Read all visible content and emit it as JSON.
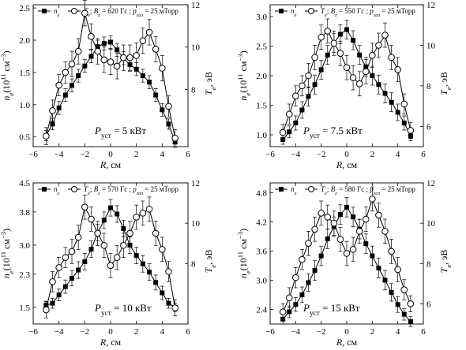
{
  "legend": {
    "ne": "n",
    "ne_sub": "e",
    "te": "T",
    "te_sub": "e",
    "sep": "; ",
    "bz": "B",
    "bz_sub": "z",
    "gs": " Гс ; ",
    "p": "p",
    "p_sub": "газ",
    "p_val": " = 25 мТорр"
  },
  "axes": {
    "xlabel_main": "R",
    "xlabel_unit": ", см",
    "ylabel_left_main": "n",
    "ylabel_left_sub": "e",
    "ylabel_left_rest": "(10",
    "ylabel_left_exp": "11",
    "ylabel_left_unit": " см",
    "ylabel_left_unit_exp": "−3",
    "ylabel_left_close": ")",
    "ylabel_right_main": "T",
    "ylabel_right_sub": "e",
    "ylabel_right_rest": ", эВ",
    "power_main": "P",
    "power_sub": "уст"
  },
  "chart_data": [
    {
      "type": "line",
      "panel": "top-left",
      "bz": "620",
      "power": " = 5 кВт",
      "x": [
        -5,
        -4.5,
        -4,
        -3.5,
        -3,
        -2.5,
        -2,
        -1.5,
        -1,
        -0.5,
        0,
        0.5,
        1,
        1.5,
        2,
        2.5,
        3,
        3.5,
        4,
        4.5,
        5
      ],
      "xlim": [
        -6,
        6
      ],
      "xticks": [
        -6,
        -4,
        -2,
        0,
        2,
        4,
        6
      ],
      "ylim_left": [
        0.35,
        2.55
      ],
      "yticks_left": [
        "0.5",
        "1.0",
        "1.5",
        "2.0",
        "2.5"
      ],
      "ylim_right": [
        5.3,
        12
      ],
      "yticks_right": [
        "8",
        "10",
        "12"
      ],
      "series": [
        {
          "name": "ne",
          "marker": "square",
          "axis": "left",
          "values": [
            0.52,
            0.7,
            0.95,
            1.15,
            1.3,
            1.45,
            1.6,
            1.75,
            1.9,
            1.95,
            1.97,
            1.85,
            1.72,
            1.62,
            1.55,
            1.45,
            1.35,
            1.15,
            0.92,
            0.7,
            0.42
          ],
          "err": [
            0.08,
            0.09,
            0.1,
            0.1,
            0.1,
            0.1,
            0.1,
            0.1,
            0.1,
            0.1,
            0.1,
            0.1,
            0.1,
            0.1,
            0.1,
            0.1,
            0.1,
            0.1,
            0.1,
            0.08,
            0.08
          ]
        },
        {
          "name": "Te",
          "marker": "circle",
          "axis": "right",
          "values": [
            5.8,
            7.0,
            8.2,
            8.8,
            9.2,
            9.8,
            11.6,
            10.5,
            9.8,
            9.4,
            9.3,
            9.1,
            9.5,
            9.5,
            9.6,
            10.3,
            10.7,
            9.9,
            9.0,
            7.2,
            5.7
          ],
          "err": [
            0.4,
            0.5,
            0.5,
            0.5,
            0.6,
            0.6,
            0.6,
            0.6,
            0.6,
            0.6,
            0.6,
            0.6,
            0.6,
            0.6,
            0.6,
            0.6,
            0.6,
            0.6,
            0.6,
            0.5,
            0.4
          ]
        }
      ]
    },
    {
      "type": "line",
      "panel": "top-right",
      "bz": "550",
      "power": " = 7.5 кВт",
      "x": [
        -5,
        -4.5,
        -4,
        -3.5,
        -3,
        -2.5,
        -2,
        -1.5,
        -1,
        -0.5,
        0,
        0.5,
        1,
        1.5,
        2,
        2.5,
        3,
        3.5,
        4,
        4.5,
        5
      ],
      "xlim": [
        -6,
        6
      ],
      "xticks": [
        -6,
        -4,
        -2,
        0,
        2,
        4,
        6
      ],
      "ylim_left": [
        0.8,
        3.2
      ],
      "yticks_left": [
        "1.0",
        "1.5",
        "2.0",
        "2.5",
        "3.0"
      ],
      "ylim_right": [
        5.0,
        12
      ],
      "yticks_right": [
        "6",
        "8",
        "10",
        "12"
      ],
      "series": [
        {
          "name": "ne",
          "marker": "square",
          "axis": "left",
          "values": [
            0.92,
            1.05,
            1.2,
            1.42,
            1.65,
            1.85,
            2.1,
            2.35,
            2.55,
            2.7,
            2.78,
            2.6,
            2.35,
            2.15,
            2.0,
            1.85,
            1.7,
            1.55,
            1.38,
            1.2,
            0.98
          ],
          "err": [
            0.08,
            0.1,
            0.12,
            0.14,
            0.16,
            0.16,
            0.16,
            0.16,
            0.16,
            0.16,
            0.16,
            0.16,
            0.16,
            0.16,
            0.16,
            0.16,
            0.16,
            0.16,
            0.14,
            0.12,
            0.08
          ]
        },
        {
          "name": "Te",
          "marker": "circle",
          "axis": "right",
          "values": [
            5.7,
            6.6,
            7.5,
            8.0,
            8.5,
            9.4,
            10.4,
            10.7,
            10.1,
            9.6,
            8.9,
            8.4,
            8.1,
            8.7,
            9.5,
            10.0,
            10.5,
            9.4,
            8.8,
            7.1,
            5.8
          ],
          "err": [
            0.4,
            0.5,
            0.5,
            0.5,
            0.6,
            0.6,
            0.6,
            0.6,
            0.6,
            0.6,
            0.6,
            0.6,
            0.6,
            0.6,
            0.6,
            0.6,
            0.6,
            0.6,
            0.6,
            0.5,
            0.4
          ]
        }
      ]
    },
    {
      "type": "line",
      "panel": "bottom-left",
      "bz": "570",
      "power": " = 10 кВт",
      "x": [
        -5,
        -4.5,
        -4,
        -3.5,
        -3,
        -2.5,
        -2,
        -1.5,
        -1,
        -0.5,
        0,
        0.5,
        1,
        1.5,
        2,
        2.5,
        3,
        3.5,
        4,
        4.5,
        5
      ],
      "xlim": [
        -6,
        6
      ],
      "xticks": [
        -6,
        -4,
        -2,
        0,
        2,
        4,
        6
      ],
      "ylim_left": [
        1.1,
        4.5
      ],
      "yticks_left": [
        "1.5",
        "2.3",
        "3.0",
        "3.8",
        "4.5"
      ],
      "ylim_right": [
        5.0,
        12
      ],
      "yticks_right": [
        "8",
        "10",
        "12"
      ],
      "series": [
        {
          "name": "ne",
          "marker": "square",
          "axis": "left",
          "values": [
            1.55,
            1.6,
            1.8,
            2.0,
            2.2,
            2.4,
            2.6,
            2.9,
            3.3,
            3.6,
            3.9,
            3.75,
            3.4,
            3.0,
            2.75,
            2.55,
            2.35,
            2.1,
            1.85,
            1.6,
            1.5
          ],
          "err": [
            0.1,
            0.12,
            0.14,
            0.16,
            0.18,
            0.2,
            0.2,
            0.2,
            0.2,
            0.2,
            0.2,
            0.2,
            0.2,
            0.2,
            0.2,
            0.2,
            0.2,
            0.18,
            0.16,
            0.12,
            0.1
          ]
        },
        {
          "name": "Te",
          "marker": "circle",
          "axis": "right",
          "values": [
            5.7,
            7.1,
            7.8,
            8.3,
            8.6,
            9.3,
            10.8,
            10.2,
            9.5,
            8.9,
            7.9,
            8.3,
            8.9,
            9.5,
            10.3,
            10.5,
            10.7,
            9.5,
            8.7,
            7.6,
            5.8
          ],
          "err": [
            0.4,
            0.5,
            0.5,
            0.5,
            0.6,
            0.6,
            0.6,
            0.6,
            0.6,
            0.6,
            0.6,
            0.6,
            0.6,
            0.6,
            0.6,
            0.6,
            0.6,
            0.6,
            0.6,
            0.5,
            0.4
          ]
        }
      ]
    },
    {
      "type": "line",
      "panel": "bottom-right",
      "bz": "580",
      "power": " = 15 кВт",
      "x": [
        -5,
        -4.5,
        -4,
        -3.5,
        -3,
        -2.5,
        -2,
        -1.5,
        -1,
        -0.5,
        0,
        0.5,
        1,
        1.5,
        2,
        2.5,
        3,
        3.5,
        4,
        4.5,
        5
      ],
      "xlim": [
        -6,
        6
      ],
      "xticks": [
        -6,
        -4,
        -2,
        0,
        2,
        4,
        6
      ],
      "ylim_left": [
        2.1,
        5.0
      ],
      "yticks_left": [
        "2.4",
        "3.0",
        "3.6",
        "4.2",
        "4.8"
      ],
      "ylim_right": [
        5.0,
        12
      ],
      "yticks_right": [
        "6",
        "8",
        "10",
        "12"
      ],
      "series": [
        {
          "name": "ne",
          "marker": "square",
          "axis": "left",
          "values": [
            2.2,
            2.35,
            2.5,
            2.7,
            2.95,
            3.2,
            3.5,
            3.85,
            4.1,
            4.35,
            4.5,
            4.3,
            4.05,
            3.75,
            3.5,
            3.25,
            3.0,
            2.75,
            2.5,
            2.3,
            2.15
          ],
          "err": [
            0.1,
            0.12,
            0.14,
            0.16,
            0.18,
            0.2,
            0.2,
            0.2,
            0.2,
            0.2,
            0.2,
            0.2,
            0.2,
            0.2,
            0.2,
            0.2,
            0.2,
            0.18,
            0.16,
            0.12,
            0.1
          ]
        },
        {
          "name": "Te",
          "marker": "circle",
          "axis": "right",
          "values": [
            5.6,
            6.3,
            7.3,
            8.2,
            9.0,
            9.7,
            10.5,
            10.3,
            10.0,
            9.2,
            8.5,
            8.7,
            9.6,
            10.2,
            11.2,
            10.4,
            9.6,
            8.6,
            7.7,
            6.7,
            6.0
          ],
          "err": [
            0.4,
            0.5,
            0.5,
            0.5,
            0.6,
            0.6,
            0.6,
            0.6,
            0.6,
            0.6,
            0.6,
            0.6,
            0.6,
            0.6,
            0.6,
            0.6,
            0.6,
            0.6,
            0.6,
            0.5,
            0.4
          ]
        }
      ]
    }
  ]
}
